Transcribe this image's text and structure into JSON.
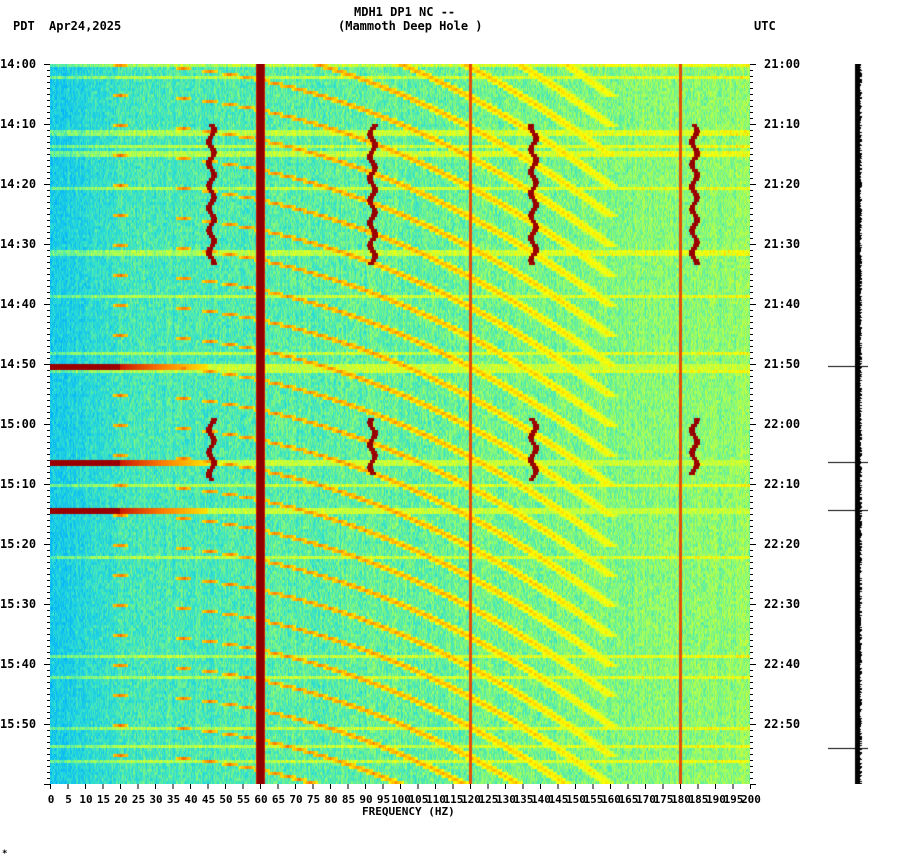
{
  "header": {
    "station_line": "MDH1 DP1 NC --",
    "station_name": "(Mammoth Deep Hole )",
    "left_tz": "PDT",
    "date": "Apr24,2025",
    "right_tz": "UTC"
  },
  "footer_mark": "*",
  "chart_data": {
    "type": "heatmap",
    "title": "MDH1 DP1 NC -- (Mammoth Deep Hole ) Apr24,2025",
    "xlabel": "FREQUENCY (HZ)",
    "ylabel_left": "PDT",
    "ylabel_right": "UTC",
    "xlim": [
      0,
      200
    ],
    "x_ticks": [
      0,
      5,
      10,
      15,
      20,
      25,
      30,
      35,
      40,
      45,
      50,
      55,
      60,
      65,
      70,
      75,
      80,
      85,
      90,
      95,
      100,
      105,
      110,
      115,
      120,
      125,
      130,
      135,
      140,
      145,
      150,
      155,
      160,
      165,
      170,
      175,
      180,
      185,
      190,
      195,
      200
    ],
    "y_ticks_left": [
      "14:00",
      "14:10",
      "14:20",
      "14:30",
      "14:40",
      "14:50",
      "15:00",
      "15:10",
      "15:20",
      "15:30",
      "15:40",
      "15:50"
    ],
    "y_ticks_right": [
      "21:00",
      "21:10",
      "21:20",
      "21:30",
      "21:40",
      "21:50",
      "22:00",
      "22:10",
      "22:20",
      "22:30",
      "22:40",
      "22:50"
    ],
    "time_range_minutes": 120,
    "colormap": [
      "#0000a0",
      "#0050ff",
      "#00b0ff",
      "#30e0d0",
      "#a0ff60",
      "#ffff00",
      "#ff8000",
      "#c00000",
      "#800000"
    ],
    "persistent_lines_hz": [
      60,
      120,
      180
    ],
    "sweeping_arcs": {
      "period_minutes": 5,
      "start_hz": 20,
      "end_hz": 160,
      "duration_minutes": 30
    },
    "transient_bursts": [
      {
        "hz": 46,
        "t_start_min": 10,
        "t_end_min": 33
      },
      {
        "hz": 92,
        "t_start_min": 10,
        "t_end_min": 33
      },
      {
        "hz": 138,
        "t_start_min": 10,
        "t_end_min": 33
      },
      {
        "hz": 184,
        "t_start_min": 10,
        "t_end_min": 33
      },
      {
        "hz": 46,
        "t_start_min": 59,
        "t_end_min": 69
      },
      {
        "hz": 92,
        "t_start_min": 59,
        "t_end_min": 68
      },
      {
        "hz": 138,
        "t_start_min": 59,
        "t_end_min": 69
      },
      {
        "hz": 184,
        "t_start_min": 59,
        "t_end_min": 68
      }
    ],
    "broadband_events_min": [
      50.3,
      66.3,
      74.3
    ],
    "trace_marks_min": [
      50.3,
      66.3,
      74.3,
      114
    ]
  }
}
